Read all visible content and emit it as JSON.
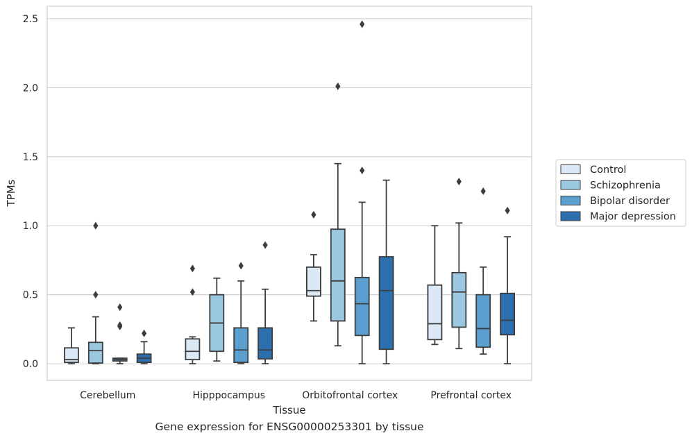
{
  "caption": "Gene expression for ENSG00000253301 by tissue",
  "chart_data": {
    "type": "box",
    "xlabel": "Tissue",
    "ylabel": "TPMs",
    "ylim": [
      -0.12,
      2.59
    ],
    "yticks": [
      "0.0",
      "0.5",
      "1.0",
      "1.5",
      "2.0",
      "2.5"
    ],
    "ytick_values": [
      0,
      0.5,
      1.0,
      1.5,
      2.0,
      2.5
    ],
    "grid": true,
    "legend_placement": "center-right outside",
    "categories": [
      "Cerebellum",
      "Hipppocampus",
      "Orbitofrontal cortex",
      "Prefrontal cortex"
    ],
    "series": [
      {
        "name": "Control",
        "color": "#dbe9f6",
        "boxes": [
          {
            "min": 0.0,
            "q1": 0.01,
            "median": 0.03,
            "q3": 0.115,
            "max": 0.26,
            "outliers": []
          },
          {
            "min": 0.0,
            "q1": 0.03,
            "median": 0.09,
            "q3": 0.18,
            "max": 0.195,
            "outliers": [
              0.52,
              0.69
            ]
          },
          {
            "min": 0.31,
            "q1": 0.49,
            "median": 0.53,
            "q3": 0.7,
            "max": 0.79,
            "outliers": [
              1.08
            ]
          },
          {
            "min": 0.14,
            "q1": 0.175,
            "median": 0.29,
            "q3": 0.57,
            "max": 1.0,
            "outliers": []
          }
        ]
      },
      {
        "name": "Schizophrenia",
        "color": "#9ac8e0",
        "boxes": [
          {
            "min": 0.0,
            "q1": 0.005,
            "median": 0.095,
            "q3": 0.155,
            "max": 0.34,
            "outliers": [
              0.5,
              1.0
            ]
          },
          {
            "min": 0.02,
            "q1": 0.09,
            "median": 0.295,
            "q3": 0.5,
            "max": 0.62,
            "outliers": []
          },
          {
            "min": 0.13,
            "q1": 0.31,
            "median": 0.6,
            "q3": 0.975,
            "max": 1.45,
            "outliers": [
              2.01
            ]
          },
          {
            "min": 0.11,
            "q1": 0.265,
            "median": 0.52,
            "q3": 0.66,
            "max": 1.02,
            "outliers": [
              1.32
            ]
          }
        ]
      },
      {
        "name": "Bipolar disorder",
        "color": "#5a9fcf",
        "boxes": [
          {
            "min": 0.0,
            "q1": 0.02,
            "median": 0.03,
            "q3": 0.04,
            "max": 0.04,
            "outliers": [
              0.27,
              0.28,
              0.41
            ]
          },
          {
            "min": 0.0,
            "q1": 0.01,
            "median": 0.1,
            "q3": 0.26,
            "max": 0.6,
            "outliers": [
              0.71
            ]
          },
          {
            "min": 0.0,
            "q1": 0.205,
            "median": 0.435,
            "q3": 0.625,
            "max": 1.17,
            "outliers": [
              1.4,
              2.46
            ]
          },
          {
            "min": 0.07,
            "q1": 0.12,
            "median": 0.255,
            "q3": 0.5,
            "max": 0.7,
            "outliers": [
              1.25
            ]
          }
        ]
      },
      {
        "name": "Major depression",
        "color": "#2c6fae",
        "boxes": [
          {
            "min": 0.0,
            "q1": 0.01,
            "median": 0.04,
            "q3": 0.07,
            "max": 0.16,
            "outliers": [
              0.22
            ]
          },
          {
            "min": 0.0,
            "q1": 0.035,
            "median": 0.1,
            "q3": 0.26,
            "max": 0.54,
            "outliers": [
              0.86
            ]
          },
          {
            "min": 0.0,
            "q1": 0.105,
            "median": 0.53,
            "q3": 0.775,
            "max": 1.33,
            "outliers": []
          },
          {
            "min": 0.0,
            "q1": 0.21,
            "median": 0.315,
            "q3": 0.51,
            "max": 0.92,
            "outliers": [
              1.11
            ]
          }
        ]
      }
    ]
  }
}
